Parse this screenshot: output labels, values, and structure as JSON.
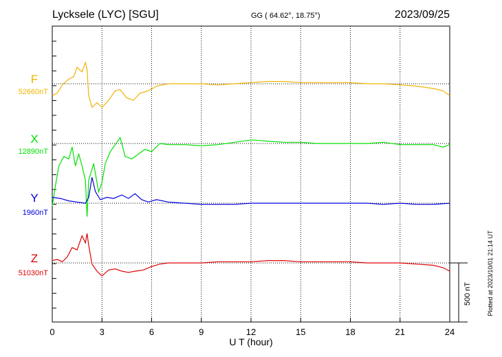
{
  "chart_data": {
    "type": "line",
    "title": "Lycksele (LYC)  [SGU]",
    "coords": "GG ( 64.62°,  18.75°)",
    "date": "2023/09/25",
    "xlabel": "U T (hour)",
    "xlim": [
      0,
      24
    ],
    "xticks": [
      0,
      3,
      6,
      9,
      12,
      15,
      18,
      21,
      24
    ],
    "grid": true,
    "scale_bar_label": "500 nT",
    "plotted_note": "Plotted at 2023/10/01 21:14 UT",
    "series": [
      {
        "name": "F",
        "baseline_label": "52660nT",
        "color": "#f0b400",
        "unit": "nT",
        "baseline": 52660,
        "points": [
          [
            0,
            52560
          ],
          [
            0.3,
            52580
          ],
          [
            0.6,
            52650
          ],
          [
            1.0,
            52700
          ],
          [
            1.3,
            52720
          ],
          [
            1.5,
            52800
          ],
          [
            1.8,
            52760
          ],
          [
            2.0,
            52840
          ],
          [
            2.1,
            52780
          ],
          [
            2.2,
            52560
          ],
          [
            2.4,
            52460
          ],
          [
            2.7,
            52500
          ],
          [
            3.0,
            52460
          ],
          [
            3.4,
            52520
          ],
          [
            3.8,
            52600
          ],
          [
            4.1,
            52610
          ],
          [
            4.5,
            52540
          ],
          [
            4.9,
            52520
          ],
          [
            5.3,
            52580
          ],
          [
            5.8,
            52600
          ],
          [
            6.3,
            52640
          ],
          [
            7.0,
            52660
          ],
          [
            8.0,
            52660
          ],
          [
            9.0,
            52660
          ],
          [
            10.0,
            52650
          ],
          [
            11.0,
            52660
          ],
          [
            12.0,
            52670
          ],
          [
            13.0,
            52680
          ],
          [
            14.0,
            52680
          ],
          [
            15.0,
            52670
          ],
          [
            16.0,
            52670
          ],
          [
            17.0,
            52670
          ],
          [
            18.0,
            52670
          ],
          [
            19.0,
            52660
          ],
          [
            20.0,
            52660
          ],
          [
            21.0,
            52650
          ],
          [
            22.0,
            52640
          ],
          [
            23.0,
            52620
          ],
          [
            23.6,
            52600
          ],
          [
            24.0,
            52560
          ]
        ]
      },
      {
        "name": "X",
        "baseline_label": "12890nT",
        "color": "#00e000",
        "unit": "nT",
        "baseline": 12890,
        "points": [
          [
            0,
            12360
          ],
          [
            0.2,
            12540
          ],
          [
            0.4,
            12700
          ],
          [
            0.7,
            12780
          ],
          [
            1.0,
            12760
          ],
          [
            1.2,
            12860
          ],
          [
            1.4,
            12700
          ],
          [
            1.6,
            12800
          ],
          [
            1.8,
            12700
          ],
          [
            2.0,
            12580
          ],
          [
            2.1,
            12270
          ],
          [
            2.2,
            12580
          ],
          [
            2.5,
            12720
          ],
          [
            2.8,
            12480
          ],
          [
            3.0,
            12560
          ],
          [
            3.2,
            12720
          ],
          [
            3.5,
            12820
          ],
          [
            3.8,
            12880
          ],
          [
            4.1,
            12940
          ],
          [
            4.4,
            12780
          ],
          [
            4.8,
            12760
          ],
          [
            5.2,
            12800
          ],
          [
            5.6,
            12840
          ],
          [
            6.0,
            12820
          ],
          [
            6.5,
            12890
          ],
          [
            7.0,
            12880
          ],
          [
            8.0,
            12880
          ],
          [
            9.0,
            12870
          ],
          [
            10.0,
            12880
          ],
          [
            11.0,
            12900
          ],
          [
            12.0,
            12920
          ],
          [
            13.0,
            12910
          ],
          [
            14.0,
            12900
          ],
          [
            15.0,
            12900
          ],
          [
            16.0,
            12890
          ],
          [
            17.0,
            12890
          ],
          [
            18.0,
            12890
          ],
          [
            19.0,
            12890
          ],
          [
            20.0,
            12900
          ],
          [
            21.0,
            12880
          ],
          [
            22.0,
            12880
          ],
          [
            23.0,
            12880
          ],
          [
            23.6,
            12860
          ],
          [
            24.0,
            12880
          ]
        ]
      },
      {
        "name": "Y",
        "baseline_label": "1960nT",
        "color": "#0000dd",
        "unit": "nT",
        "baseline": 1960,
        "points": [
          [
            0,
            2010
          ],
          [
            0.5,
            2000
          ],
          [
            1.0,
            1980
          ],
          [
            1.5,
            1970
          ],
          [
            2.0,
            1960
          ],
          [
            2.2,
            2010
          ],
          [
            2.4,
            2180
          ],
          [
            2.6,
            2060
          ],
          [
            2.9,
            1990
          ],
          [
            3.3,
            2010
          ],
          [
            3.7,
            2000
          ],
          [
            4.2,
            2030
          ],
          [
            4.6,
            2000
          ],
          [
            5.0,
            2040
          ],
          [
            5.4,
            1990
          ],
          [
            5.8,
            1970
          ],
          [
            6.3,
            1990
          ],
          [
            7.0,
            1970
          ],
          [
            8.0,
            1960
          ],
          [
            9.0,
            1950
          ],
          [
            10.0,
            1950
          ],
          [
            11.0,
            1950
          ],
          [
            12.0,
            1960
          ],
          [
            13.0,
            1960
          ],
          [
            14.0,
            1960
          ],
          [
            15.0,
            1960
          ],
          [
            16.0,
            1960
          ],
          [
            17.0,
            1960
          ],
          [
            18.0,
            1960
          ],
          [
            19.0,
            1960
          ],
          [
            20.0,
            1950
          ],
          [
            21.0,
            1960
          ],
          [
            22.0,
            1950
          ],
          [
            23.0,
            1950
          ],
          [
            24.0,
            1960
          ]
        ]
      },
      {
        "name": "Z",
        "baseline_label": "51030nT",
        "color": "#e00000",
        "unit": "nT",
        "baseline": 51030,
        "points": [
          [
            0,
            51050
          ],
          [
            0.3,
            51060
          ],
          [
            0.6,
            51040
          ],
          [
            0.9,
            51080
          ],
          [
            1.2,
            51160
          ],
          [
            1.5,
            51140
          ],
          [
            1.8,
            51260
          ],
          [
            2.0,
            51200
          ],
          [
            2.1,
            51280
          ],
          [
            2.2,
            51180
          ],
          [
            2.4,
            51020
          ],
          [
            2.7,
            50960
          ],
          [
            3.0,
            50920
          ],
          [
            3.4,
            50970
          ],
          [
            3.8,
            50980
          ],
          [
            4.2,
            50960
          ],
          [
            4.6,
            50950
          ],
          [
            5.0,
            50960
          ],
          [
            5.5,
            50970
          ],
          [
            6.0,
            51000
          ],
          [
            6.5,
            51020
          ],
          [
            7.0,
            51030
          ],
          [
            8.0,
            51030
          ],
          [
            9.0,
            51030
          ],
          [
            10.0,
            51040
          ],
          [
            11.0,
            51040
          ],
          [
            12.0,
            51040
          ],
          [
            13.0,
            51050
          ],
          [
            14.0,
            51050
          ],
          [
            15.0,
            51040
          ],
          [
            16.0,
            51040
          ],
          [
            17.0,
            51040
          ],
          [
            18.0,
            51040
          ],
          [
            19.0,
            51030
          ],
          [
            20.0,
            51030
          ],
          [
            21.0,
            51030
          ],
          [
            22.0,
            51020
          ],
          [
            23.0,
            51010
          ],
          [
            23.6,
            50990
          ],
          [
            24.0,
            50960
          ]
        ]
      }
    ]
  }
}
